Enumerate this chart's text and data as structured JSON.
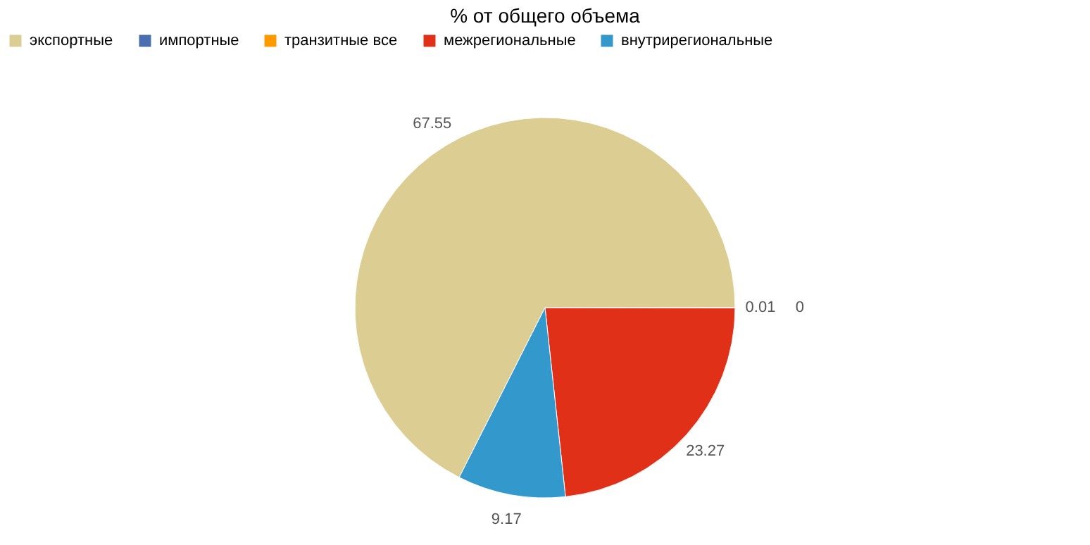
{
  "chart_data": {
    "type": "pie",
    "title": "% от общего объема",
    "categories": [
      "экспортные",
      "импортные",
      "транзитные все",
      "межрегиональные",
      "внутрирегиональные"
    ],
    "values": [
      67.55,
      0.01,
      0,
      23.27,
      9.17
    ],
    "colors": [
      "#dccd92",
      "#4a6fb0",
      "#ff9900",
      "#e03018",
      "#3399cc"
    ],
    "value_labels": [
      "67.55",
      "0.01",
      "0",
      "23.27",
      "9.17"
    ],
    "legend": "top"
  }
}
